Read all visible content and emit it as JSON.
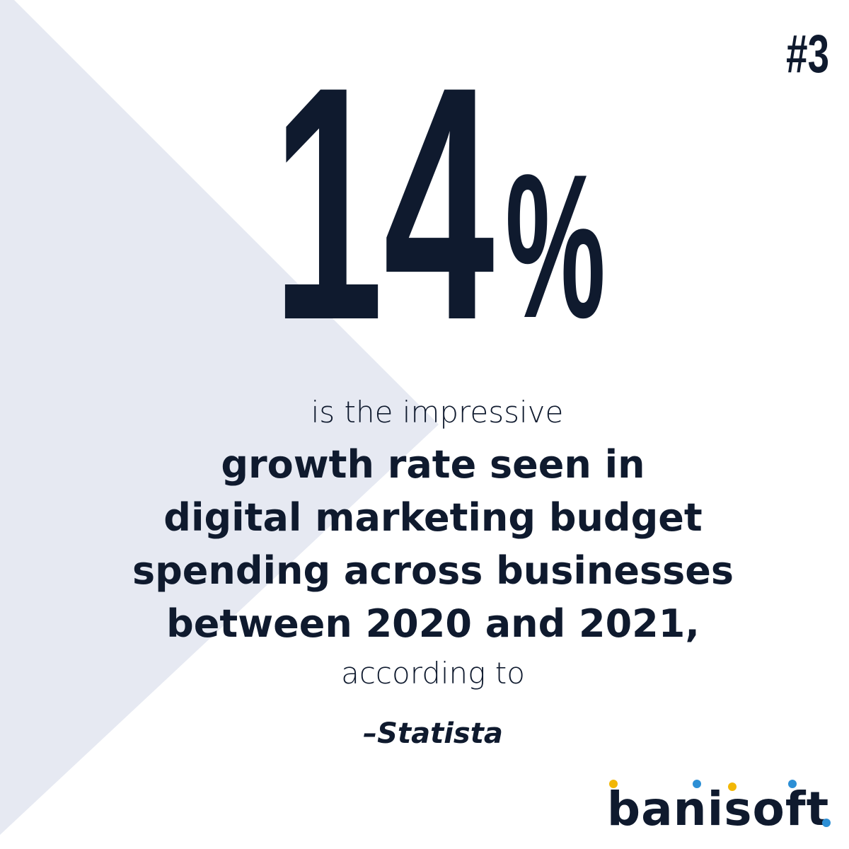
{
  "badge": "#3",
  "headline": {
    "number": "14",
    "unit": "%"
  },
  "intro": "is the impressive",
  "statement_lines": [
    "growth rate seen in",
    "digital marketing budget",
    "spending across businesses",
    "between 2020 and 2021,"
  ],
  "outro": "according to",
  "source": "–Statista",
  "logo": "banisoft"
}
